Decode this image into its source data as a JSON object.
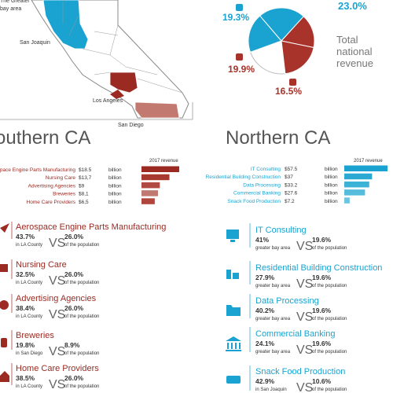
{
  "map": {
    "labels": [
      "The Greater bay area",
      "San Joaquin",
      "Los Angeles",
      "San Diego"
    ]
  },
  "revenue_share": {
    "values": [
      19.3,
      23.0,
      16.5,
      19.9
    ],
    "value_labels": [
      "19.3%",
      "23.0%",
      "16.5%",
      "19.9%"
    ],
    "colors": [
      "#1aa3d0",
      "#1aa3d0",
      "#a8332a",
      "#a8332a"
    ],
    "caption": "Total national revenue"
  },
  "vs": "VS",
  "population_label": "of the population",
  "unit": "billion",
  "revenue_header": "2017 revenue",
  "south": {
    "title": "Southern CA",
    "color": "#9b2a22",
    "bar_colors": [
      "#9b2a22",
      "#a8392f",
      "#b14a42",
      "#c07a72",
      "#b0453c"
    ],
    "bars": [
      {
        "name": "Aerospace Engine Parts Manufacturing",
        "value": 18.5,
        "value_label": "$18.5"
      },
      {
        "name": "Nursing Care",
        "value": 13.7,
        "value_label": "$13,7"
      },
      {
        "name": "Advertising Agencies",
        "value": 9,
        "value_label": "$9"
      },
      {
        "name": "Breweries",
        "value": 8.1,
        "value_label": "$8,1"
      },
      {
        "name": "Home Care Providers",
        "value": 6.5,
        "value_label": "$6,5"
      }
    ],
    "items": [
      {
        "name": "Aerospace Engine Parts Manufacturing",
        "share": "43.7%",
        "region": "in LA County",
        "population_share": "26.0%"
      },
      {
        "name": "Nursing Care",
        "share": "32.5%",
        "region": "in LA County",
        "population_share": "26.0%"
      },
      {
        "name": "Advertising Agencies",
        "share": "38.4%",
        "region": "in LA County",
        "population_share": "26.0%"
      },
      {
        "name": "Breweries",
        "share": "19.8%",
        "region": "in San Diego",
        "population_share": "8.9%"
      },
      {
        "name": "Home Care Providers",
        "share": "38.5%",
        "region": "in LA County",
        "population_share": "26.0%"
      }
    ]
  },
  "north": {
    "title": "Northern CA",
    "color": "#1aa3d0",
    "bar_colors": [
      "#1aa3d0",
      "#2aaad3",
      "#3db2d7",
      "#55bcdc",
      "#6cc5e0"
    ],
    "bars": [
      {
        "name": "IT Consulting",
        "value": 57.5,
        "value_label": "$57.5"
      },
      {
        "name": "Residential Building Construction",
        "value": 37,
        "value_label": "$37"
      },
      {
        "name": "Data Processing",
        "value": 33.2,
        "value_label": "$33.2"
      },
      {
        "name": "Commercial Banking",
        "value": 27.6,
        "value_label": "$27.6"
      },
      {
        "name": "Snack Food Production",
        "value": 7.2,
        "value_label": "$7.2"
      }
    ],
    "items": [
      {
        "name": "IT Consulting",
        "share": "41%",
        "region": "greater bay area",
        "population_share": "19.6%"
      },
      {
        "name": "Residential Building Construction",
        "share": "27.9%",
        "region": "greater bay area",
        "population_share": "19.6%"
      },
      {
        "name": "Data Processing",
        "share": "40.2%",
        "region": "greater bay area",
        "population_share": "19.6%"
      },
      {
        "name": "Commercial Banking",
        "share": "24.1%",
        "region": "greater bay area",
        "population_share": "19.6%"
      },
      {
        "name": "Snack Food Production",
        "share": "42.9%",
        "region": "in San Joaquin",
        "population_share": "10.6%"
      }
    ]
  }
}
